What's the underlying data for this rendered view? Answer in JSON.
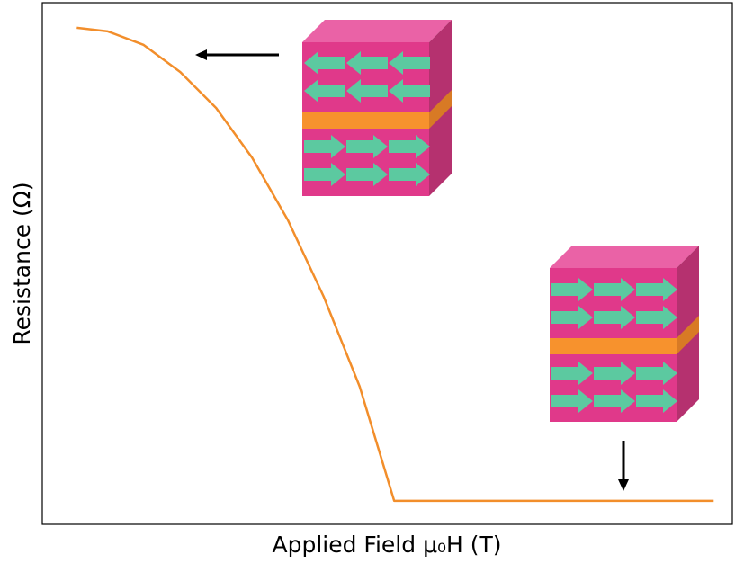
{
  "chart_data": {
    "type": "line",
    "x_label": "Applied Field μ₀H (T)",
    "y_label": "Resistance (Ω)",
    "x": [
      0.05,
      0.095,
      0.147,
      0.2,
      0.252,
      0.304,
      0.356,
      0.408,
      0.46,
      0.51,
      0.973
    ],
    "series": [
      {
        "color": "#f28e2b",
        "values": [
          0.952,
          0.945,
          0.919,
          0.867,
          0.798,
          0.703,
          0.583,
          0.436,
          0.264,
          0.045,
          0.045
        ]
      }
    ],
    "xlim": [
      0,
      1
    ],
    "ylim": [
      0,
      1
    ],
    "grid": false
  }
}
